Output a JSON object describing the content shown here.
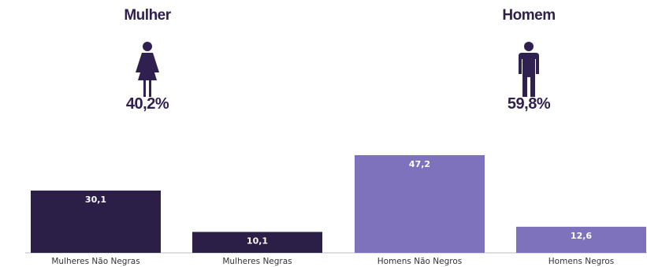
{
  "groups": [
    {
      "title": "Mulher",
      "percent": "40,2%",
      "icon": "female-person-icon",
      "color": "#2f2050"
    },
    {
      "title": "Homem",
      "percent": "59,8%",
      "icon": "male-person-icon",
      "color": "#2f2050"
    }
  ],
  "chart_data": {
    "type": "bar",
    "categories": [
      "Mulheres Não Negras",
      "Mulheres Negras",
      "Homens Não Negros",
      "Homens Negros"
    ],
    "values": [
      30.1,
      10.1,
      47.2,
      12.6
    ],
    "value_labels": [
      "30,1",
      "10,1",
      "47,2",
      "12,6"
    ],
    "colors": [
      "#2b1e47",
      "#2b1e47",
      "#7f72bd",
      "#7f72bd"
    ],
    "ylim": [
      0,
      50
    ],
    "title": "",
    "xlabel": "",
    "ylabel": "",
    "grid": false,
    "legend": "none"
  }
}
